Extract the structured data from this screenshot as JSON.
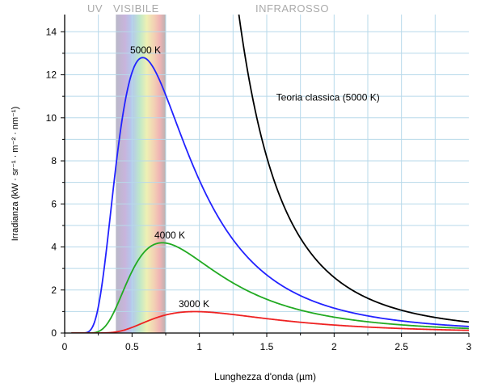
{
  "chart_data": {
    "type": "line",
    "xlabel": "Lunghezza d'onda (µm)",
    "ylabel": "Irradianza (kW · sr⁻¹ · m⁻² · nm⁻¹)",
    "xlim": [
      0,
      3
    ],
    "ylim": [
      0,
      14.8
    ],
    "xticks": [
      0,
      0.5,
      1,
      1.5,
      2,
      2.5,
      3
    ],
    "xtick_labels": [
      "0",
      "0.5",
      "1",
      "1.5",
      "2",
      "2.5",
      "3"
    ],
    "yticks": [
      0,
      2,
      4,
      6,
      8,
      10,
      12,
      14
    ],
    "ytick_labels": [
      "0",
      "2",
      "4",
      "6",
      "8",
      "10",
      "12",
      "14"
    ],
    "grid": true,
    "bands": [
      {
        "label": "UV"
      },
      {
        "label": "VISIBILE",
        "range": [
          0.38,
          0.75
        ]
      },
      {
        "label": "INFRAROSSO"
      }
    ],
    "series": [
      {
        "name": "5000 K",
        "temperature": 5000,
        "color": "#2222ff",
        "label_at": [
          0.6,
          13.0
        ]
      },
      {
        "name": "4000 K",
        "temperature": 4000,
        "color": "#22aa22",
        "label_at": [
          0.78,
          4.4
        ]
      },
      {
        "name": "3000 K",
        "temperature": 3000,
        "color": "#ee2222",
        "label_at": [
          0.96,
          1.2
        ]
      },
      {
        "name": "Teoria classica (5000 K)",
        "temperature": 5000,
        "classical": true,
        "color": "#000000",
        "label_at": [
          1.57,
          10.8
        ]
      }
    ],
    "peaks": [
      {
        "series": "5000 K",
        "x": 0.58,
        "y": 12.7
      },
      {
        "series": "4000 K",
        "x": 0.72,
        "y": 4.15
      },
      {
        "series": "3000 K",
        "x": 0.97,
        "y": 0.99
      }
    ]
  }
}
